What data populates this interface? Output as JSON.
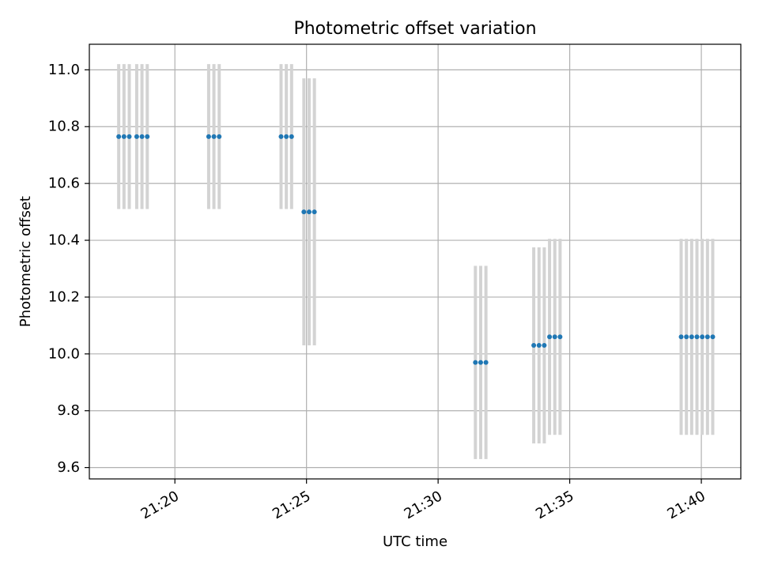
{
  "chart_data": {
    "type": "scatter",
    "title": "Photometric offset variation",
    "xlabel": "UTC time",
    "ylabel": "Photometric offset",
    "x_unit": "UTC time (HH:MM)",
    "xlim": [
      "21:16:45",
      "21:41:30"
    ],
    "ylim": [
      9.56,
      11.09
    ],
    "x_ticks": [
      "21:20",
      "21:25",
      "21:30",
      "21:35",
      "21:40"
    ],
    "y_ticks": [
      "9.6",
      "9.8",
      "10.0",
      "10.2",
      "10.4",
      "10.6",
      "10.8",
      "11.0"
    ],
    "grid": true,
    "legend": "none",
    "colors": {
      "point": "#1f77b4",
      "errorbar": "#d3d3d3",
      "grid": "#b0b0b0"
    },
    "series": [
      {
        "points": [
          {
            "x": "21:17:52",
            "y": 10.765,
            "err": 0.255
          },
          {
            "x": "21:18:04",
            "y": 10.765,
            "err": 0.255
          },
          {
            "x": "21:18:16",
            "y": 10.765,
            "err": 0.255
          },
          {
            "x": "21:18:33",
            "y": 10.765,
            "err": 0.255
          },
          {
            "x": "21:18:45",
            "y": 10.765,
            "err": 0.255
          },
          {
            "x": "21:18:57",
            "y": 10.765,
            "err": 0.255
          },
          {
            "x": "21:21:17",
            "y": 10.765,
            "err": 0.255
          },
          {
            "x": "21:21:29",
            "y": 10.765,
            "err": 0.255
          },
          {
            "x": "21:21:41",
            "y": 10.765,
            "err": 0.255
          },
          {
            "x": "21:24:02",
            "y": 10.765,
            "err": 0.255
          },
          {
            "x": "21:24:14",
            "y": 10.765,
            "err": 0.255
          },
          {
            "x": "21:24:26",
            "y": 10.765,
            "err": 0.255
          },
          {
            "x": "21:24:54",
            "y": 10.5,
            "err": 0.47
          },
          {
            "x": "21:25:06",
            "y": 10.5,
            "err": 0.47
          },
          {
            "x": "21:25:18",
            "y": 10.5,
            "err": 0.47
          },
          {
            "x": "21:31:25",
            "y": 9.97,
            "err": 0.34
          },
          {
            "x": "21:31:37",
            "y": 9.97,
            "err": 0.34
          },
          {
            "x": "21:31:49",
            "y": 9.97,
            "err": 0.34
          },
          {
            "x": "21:33:38",
            "y": 10.03,
            "err": 0.345
          },
          {
            "x": "21:33:50",
            "y": 10.03,
            "err": 0.345
          },
          {
            "x": "21:34:02",
            "y": 10.03,
            "err": 0.345
          },
          {
            "x": "21:34:14",
            "y": 10.06,
            "err": 0.345
          },
          {
            "x": "21:34:26",
            "y": 10.06,
            "err": 0.345
          },
          {
            "x": "21:34:38",
            "y": 10.06,
            "err": 0.345
          },
          {
            "x": "21:39:14",
            "y": 10.06,
            "err": 0.345
          },
          {
            "x": "21:39:26",
            "y": 10.06,
            "err": 0.345
          },
          {
            "x": "21:39:38",
            "y": 10.06,
            "err": 0.345
          },
          {
            "x": "21:39:50",
            "y": 10.06,
            "err": 0.345
          },
          {
            "x": "21:40:02",
            "y": 10.06,
            "err": 0.345
          },
          {
            "x": "21:40:14",
            "y": 10.06,
            "err": 0.345
          },
          {
            "x": "21:40:26",
            "y": 10.06,
            "err": 0.345
          }
        ]
      }
    ]
  }
}
